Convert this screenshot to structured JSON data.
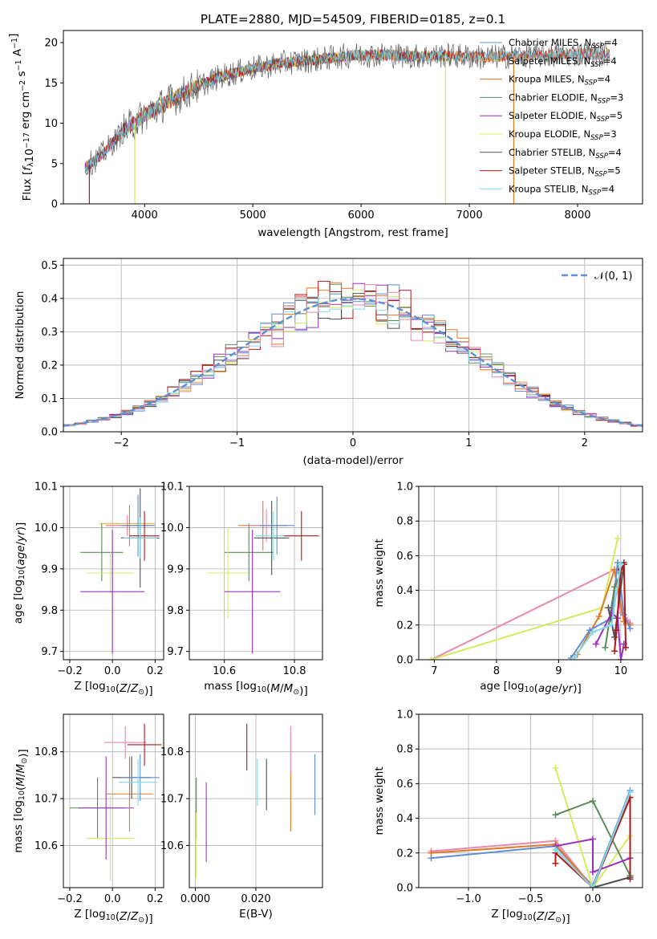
{
  "figure_title": "PLATE=2880, MJD=54509, FIBERID=0185, z=0.1",
  "colors": {
    "Chabrier MILES": "#5f8fd0",
    "Salpeter MILES": "#f0b030",
    "Kroupa MILES": "#e07a25",
    "Chabrier ELODIE": "#5a8a5a",
    "Salpeter ELODIE": "#9a30c0",
    "Kroupa ELODIE": "#d8e860",
    "Chabrier STELIB": "#505050",
    "Salpeter STELIB": "#b01818",
    "Kroupa STELIB": "#80d8e8",
    "pink": "#e888b0",
    "normal": "#5f8fd0"
  },
  "chart_data": [
    {
      "id": "spectrum",
      "type": "line",
      "title": "PLATE=2880, MJD=54509, FIBERID=0185, z=0.1",
      "xlabel": "wavelength [Angstrom, rest frame]",
      "ylabel": "Flux [f_λ10^-17 erg cm^-2 s^-1 A^-1]",
      "xlim": [
        3250,
        8600
      ],
      "ylim": [
        0,
        21.5
      ],
      "xticks": [
        4000,
        5000,
        6000,
        7000,
        8000
      ],
      "yticks": [
        0,
        5,
        10,
        15,
        20
      ],
      "legend_position": "top-right",
      "legend": [
        {
          "base": "Chabrier MILES, N",
          "sub": "SSP",
          "tail": "=4"
        },
        {
          "base": "Salpeter MILES, N",
          "sub": "SSP",
          "tail": "=4"
        },
        {
          "base": "Kroupa MILES, N",
          "sub": "SSP",
          "tail": "=4"
        },
        {
          "base": "Chabrier ELODIE, N",
          "sub": "SSP",
          "tail": "=3"
        },
        {
          "base": "Salpeter ELODIE, N",
          "sub": "SSP",
          "tail": "=5"
        },
        {
          "base": "Kroupa ELODIE, N",
          "sub": "SSP",
          "tail": "=3"
        },
        {
          "base": "Chabrier STELIB, N",
          "sub": "SSP",
          "tail": "=4"
        },
        {
          "base": "Salpeter STELIB, N",
          "sub": "SSP",
          "tail": "=5"
        },
        {
          "base": "Kroupa STELIB, N",
          "sub": "SSP",
          "tail": "=4"
        }
      ],
      "series_keys": [
        "Chabrier MILES",
        "Salpeter MILES",
        "Kroupa MILES",
        "Chabrier ELODIE",
        "Salpeter ELODIE",
        "Kroupa ELODIE",
        "Chabrier STELIB",
        "Salpeter STELIB",
        "Kroupa STELIB"
      ],
      "continuum": {
        "x": [
          3450,
          3600,
          3800,
          4000,
          4200,
          4400,
          4700,
          5000,
          5300,
          5600,
          5900,
          6200,
          6500,
          6800,
          7100,
          7400,
          7700,
          8000,
          8300
        ],
        "y": [
          4.5,
          6.0,
          9.0,
          11.0,
          12.5,
          14.0,
          15.8,
          16.8,
          17.5,
          17.9,
          18.4,
          18.5,
          18.3,
          18.4,
          18.2,
          18.3,
          18.4,
          18.6,
          18.6
        ]
      },
      "drops": [
        {
          "series": "Salpeter STELIB",
          "x": 3490,
          "to": 0
        },
        {
          "series": "Kroupa ELODIE",
          "x": 3910,
          "to": 0
        },
        {
          "series": "Kroupa ELODIE",
          "x": 6780,
          "to": 0
        },
        {
          "series": "Kroupa MILES",
          "x": 7410,
          "to": 0
        }
      ]
    },
    {
      "id": "residuals",
      "type": "histogram",
      "xlabel": "(data-model)/error",
      "ylabel": "Normed distribution",
      "xlim": [
        -2.5,
        2.5
      ],
      "ylim": [
        0,
        0.52
      ],
      "xticks": [
        -2,
        -1,
        0,
        1,
        2
      ],
      "xticklabels": [
        "−2",
        "−1",
        "0",
        "1",
        "2"
      ],
      "yticks": [
        0,
        0.1,
        0.2,
        0.3,
        0.4,
        0.5
      ],
      "yticklabels": [
        "0.0",
        "0.1",
        "0.2",
        "0.3",
        "0.4",
        "0.5"
      ],
      "bin_width": 0.1,
      "bin_start": -2.5,
      "legend_label": "𝒩(0, 1)",
      "legend_position": "top-right",
      "grid": true
    },
    {
      "id": "age-vs-Z",
      "type": "errorbar",
      "xlabel": "Z [log10(Z/Z⊙)]",
      "ylabel": "age  [log10(age/yr)]",
      "xlim": [
        -0.23,
        0.24
      ],
      "ylim": [
        9.68,
        10.1
      ],
      "xticks": [
        -0.2,
        0.0,
        0.2
      ],
      "xticklabels": [
        "−0.2",
        "0.0",
        "0.2"
      ],
      "yticks": [
        9.7,
        9.8,
        9.9,
        10.0,
        10.1
      ],
      "yticklabels": [
        "9.7",
        "9.8",
        "9.9",
        "10.0",
        "10.1"
      ],
      "grid": true,
      "points": [
        {
          "c": "Chabrier ELODIE",
          "x": -0.05,
          "xe": 0.1,
          "y": 9.94,
          "ye": 0.07
        },
        {
          "c": "Kroupa ELODIE",
          "x": -0.01,
          "xe": 0.11,
          "y": 9.89,
          "ye": 0.05
        },
        {
          "c": "Salpeter ELODIE",
          "x": 0.0,
          "xe": 0.15,
          "y": 9.845,
          "ye": 0.15
        },
        {
          "c": "Salpeter MILES",
          "x": 0.07,
          "xe": 0.13,
          "y": 10.01,
          "ye": 0.02
        },
        {
          "c": "Kroupa MILES",
          "x": 0.08,
          "xe": 0.11,
          "y": 10.005,
          "ye": 0.05
        },
        {
          "c": "pink",
          "x": 0.07,
          "xe": 0.1,
          "y": 10.005,
          "ye": 0.025
        },
        {
          "c": "Chabrier MILES",
          "x": 0.12,
          "xe": 0.08,
          "y": 10.005,
          "ye": 0.075
        },
        {
          "c": "Chabrier STELIB",
          "x": 0.13,
          "xe": 0.09,
          "y": 9.975,
          "ye": 0.12
        },
        {
          "c": "Salpeter STELIB",
          "x": 0.15,
          "xe": 0.07,
          "y": 9.98,
          "ye": 0.06
        },
        {
          "c": "Kroupa STELIB",
          "x": 0.13,
          "xe": 0.08,
          "y": 9.975,
          "ye": 0.05
        }
      ]
    },
    {
      "id": "age-vs-mass",
      "type": "errorbar",
      "xlabel": "mass [log10(M/M⊙)]",
      "xlim": [
        10.5,
        10.88
      ],
      "ylim": [
        9.68,
        10.1
      ],
      "xticks": [
        10.6,
        10.8
      ],
      "xticklabels": [
        "10.6",
        "10.8"
      ],
      "yticks": [
        9.7,
        9.8,
        9.9,
        10.0,
        10.1
      ],
      "yticklabels": [
        "9.7",
        "9.8",
        "9.9",
        "10.0",
        "10.1"
      ],
      "grid": true,
      "points": [
        {
          "c": "Chabrier ELODIE",
          "x": 10.67,
          "xe": 0.07,
          "y": 9.94,
          "ye": 0.07
        },
        {
          "c": "Kroupa ELODIE",
          "x": 10.61,
          "xe": 0.06,
          "y": 9.89,
          "ye": 0.11
        },
        {
          "c": "Salpeter ELODIE",
          "x": 10.68,
          "xe": 0.08,
          "y": 9.845,
          "ye": 0.15
        },
        {
          "c": "Kroupa MILES",
          "x": 10.71,
          "xe": 0.07,
          "y": 10.005,
          "ye": 0.06
        },
        {
          "c": "pink",
          "x": 10.72,
          "xe": 0.06,
          "y": 10.005,
          "ye": 0.04
        },
        {
          "c": "Chabrier STELIB",
          "x": 10.735,
          "xe": 0.05,
          "y": 9.975,
          "ye": 0.09
        },
        {
          "c": "Kroupa STELIB",
          "x": 10.74,
          "xe": 0.05,
          "y": 9.98,
          "ye": 0.06
        },
        {
          "c": "Chabrier MILES",
          "x": 10.75,
          "xe": 0.05,
          "y": 10.005,
          "ye": 0.07
        },
        {
          "c": "Salpeter STELIB",
          "x": 10.82,
          "xe": 0.05,
          "y": 9.98,
          "ye": 0.06
        }
      ]
    },
    {
      "id": "weight-vs-age",
      "type": "line",
      "xlabel": "age  [log10(age/yr)]",
      "ylabel": "mass weight",
      "xlim": [
        6.75,
        10.35
      ],
      "ylim": [
        0,
        1.0
      ],
      "xticks": [
        7,
        8,
        9,
        10
      ],
      "xticklabels": [
        "7",
        "8",
        "9",
        "10"
      ],
      "yticks": [
        0,
        0.2,
        0.4,
        0.6,
        0.8,
        1.0
      ],
      "yticklabels": [
        "0.0",
        "0.2",
        "0.4",
        "0.6",
        "0.8",
        "1.0"
      ],
      "grid": true,
      "series": [
        {
          "c": "pink",
          "x": [
            6.95,
            9.9,
            10.0,
            10.1,
            10.15
          ],
          "y": [
            0.0,
            0.52,
            0.27,
            0.23,
            0.21
          ]
        },
        {
          "c": "Kroupa ELODIE",
          "x": [
            6.95,
            9.7,
            9.95
          ],
          "y": [
            0.0,
            0.3,
            0.7
          ]
        },
        {
          "c": "Kroupa MILES",
          "x": [
            9.3,
            9.65,
            9.9,
            10.05,
            10.15
          ],
          "y": [
            0.03,
            0.25,
            0.52,
            0.22,
            0.2
          ]
        },
        {
          "c": "Chabrier MILES",
          "x": [
            9.2,
            9.5,
            9.85,
            9.95,
            10.05,
            10.15
          ],
          "y": [
            0.01,
            0.17,
            0.24,
            0.56,
            0.26,
            0.18
          ]
        },
        {
          "c": "Chabrier ELODIE",
          "x": [
            9.75,
            9.9,
            10.0
          ],
          "y": [
            0.07,
            0.42,
            0.5
          ]
        },
        {
          "c": "Salpeter ELODIE",
          "x": [
            9.6,
            9.85,
            9.95,
            10.0,
            10.05
          ],
          "y": [
            0.09,
            0.27,
            0.24,
            0.0,
            0.09
          ]
        },
        {
          "c": "Chabrier STELIB",
          "x": [
            9.8,
            9.9,
            10.05
          ],
          "y": [
            0.3,
            0.13,
            0.56
          ]
        },
        {
          "c": "Salpeter STELIB",
          "x": [
            9.9,
            9.93,
            10.0,
            10.05,
            10.08
          ],
          "y": [
            0.05,
            0.17,
            0.52,
            0.55,
            0.07
          ]
        },
        {
          "c": "Kroupa STELIB",
          "x": [
            9.25,
            9.55,
            9.85,
            10.0
          ],
          "y": [
            0.01,
            0.16,
            0.2,
            0.55
          ]
        }
      ]
    },
    {
      "id": "mass-vs-Z",
      "type": "errorbar",
      "xlabel": "Z [log10(Z/Z⊙)]",
      "ylabel": "mass [log10(M/M⊙)]",
      "xlim": [
        -0.23,
        0.24
      ],
      "ylim": [
        10.51,
        10.88
      ],
      "xticks": [
        -0.2,
        0.0,
        0.2
      ],
      "xticklabels": [
        "−0.2",
        "0.0",
        "0.2"
      ],
      "yticks": [
        10.6,
        10.7,
        10.8
      ],
      "yticklabels": [
        "10.6",
        "10.7",
        "10.8"
      ],
      "grid": true,
      "points": [
        {
          "c": "Chabrier ELODIE",
          "x": -0.07,
          "xe": 0.13,
          "y": 10.68,
          "ye": 0.065
        },
        {
          "c": "Kroupa ELODIE",
          "x": -0.01,
          "xe": 0.11,
          "y": 10.615,
          "ye": 0.09
        },
        {
          "c": "Salpeter ELODIE",
          "x": -0.03,
          "xe": 0.13,
          "y": 10.68,
          "ye": 0.11
        },
        {
          "c": "Kroupa MILES",
          "x": 0.08,
          "xe": 0.11,
          "y": 10.71,
          "ye": 0.08
        },
        {
          "c": "pink",
          "x": 0.06,
          "xe": 0.1,
          "y": 10.82,
          "ye": 0.035
        },
        {
          "c": "Chabrier STELIB",
          "x": 0.09,
          "xe": 0.09,
          "y": 10.745,
          "ye": 0.045
        },
        {
          "c": "Chabrier MILES",
          "x": 0.13,
          "xe": 0.09,
          "y": 10.745,
          "ye": 0.05
        },
        {
          "c": "Kroupa STELIB",
          "x": 0.12,
          "xe": 0.09,
          "y": 10.735,
          "ye": 0.05
        },
        {
          "c": "Salpeter STELIB",
          "x": 0.15,
          "xe": 0.08,
          "y": 10.815,
          "ye": 0.045
        }
      ]
    },
    {
      "id": "mass-vs-ebv",
      "type": "errorbar",
      "xlabel": "E(B-V)",
      "xlim": [
        -0.002,
        0.042
      ],
      "ylim": [
        10.51,
        10.88
      ],
      "xticks": [
        0.0,
        0.02
      ],
      "xticklabels": [
        "0.000",
        "0.020"
      ],
      "yticks": [
        10.6,
        10.7,
        10.8
      ],
      "yticklabels": [
        "10.6",
        "10.7",
        "10.8"
      ],
      "grid": true,
      "points": [
        {
          "c": "Chabrier ELODIE",
          "x": 0.0003,
          "y": 10.68,
          "ye": 0.065
        },
        {
          "c": "Kroupa ELODIE",
          "x": 0.0003,
          "y": 10.6,
          "ye": 0.07
        },
        {
          "c": "Salpeter ELODIE",
          "x": 0.0036,
          "y": 10.65,
          "ye": 0.085
        },
        {
          "c": "Salpeter STELIB",
          "x": 0.017,
          "y": 10.81,
          "ye": 0.05
        },
        {
          "c": "Kroupa STELIB",
          "x": 0.0205,
          "y": 10.735,
          "ye": 0.05
        },
        {
          "c": "Chabrier STELIB",
          "x": 0.0235,
          "y": 10.73,
          "ye": 0.055
        },
        {
          "c": "Kroupa MILES",
          "x": 0.0315,
          "y": 10.695,
          "ye": 0.065
        },
        {
          "c": "pink",
          "x": 0.0315,
          "y": 10.805,
          "ye": 0.05
        },
        {
          "c": "Chabrier MILES",
          "x": 0.0395,
          "y": 10.73,
          "ye": 0.065
        }
      ]
    },
    {
      "id": "weight-vs-Z",
      "type": "line",
      "xlabel": "Z [log10(Z/Z⊙)]",
      "ylabel": "mass weight",
      "xlim": [
        -1.4,
        0.4
      ],
      "ylim": [
        0,
        1.0
      ],
      "xticks": [
        -1.0,
        -0.5,
        0.0
      ],
      "xticklabels": [
        "−1.0",
        "−0.5",
        "0.0"
      ],
      "yticks": [
        0,
        0.2,
        0.4,
        0.6,
        0.8,
        1.0
      ],
      "yticklabels": [
        "0.0",
        "0.2",
        "0.4",
        "0.6",
        "0.8",
        "1.0"
      ],
      "grid": true,
      "series": [
        {
          "c": "Chabrier MILES",
          "x": [
            -1.3,
            -0.3,
            0.0,
            0.3
          ],
          "y": [
            0.17,
            0.24,
            0.01,
            0.56
          ]
        },
        {
          "c": "pink",
          "x": [
            -1.3,
            -0.3,
            0.0,
            0.3
          ],
          "y": [
            0.21,
            0.27,
            0.0,
            0.52
          ]
        },
        {
          "c": "Kroupa MILES",
          "x": [
            -1.3,
            -0.3,
            0.0,
            0.3
          ],
          "y": [
            0.2,
            0.25,
            0.0,
            0.52
          ]
        },
        {
          "c": "Kroupa ELODIE",
          "x": [
            -0.3,
            0.0,
            0.3
          ],
          "y": [
            0.69,
            0.0,
            0.3
          ]
        },
        {
          "c": "Chabrier ELODIE",
          "x": [
            -0.3,
            0.0,
            0.3
          ],
          "y": [
            0.42,
            0.5,
            0.07
          ]
        },
        {
          "c": "Salpeter ELODIE",
          "x": [
            -0.3,
            0.0,
            0.0,
            0.3
          ],
          "y": [
            0.24,
            0.28,
            0.09,
            0.17
          ]
        },
        {
          "c": "Salpeter STELIB",
          "x": [
            -0.3,
            -0.3,
            0.0,
            0.3,
            0.3
          ],
          "y": [
            0.14,
            0.2,
            0.0,
            0.52,
            0.05
          ]
        },
        {
          "c": "Chabrier STELIB",
          "x": [
            0.0,
            0.3
          ],
          "y": [
            0.0,
            0.06
          ]
        },
        {
          "c": "Kroupa STELIB",
          "x": [
            -0.3,
            0.0,
            0.3
          ],
          "y": [
            0.22,
            0.0,
            0.55
          ]
        }
      ]
    }
  ]
}
